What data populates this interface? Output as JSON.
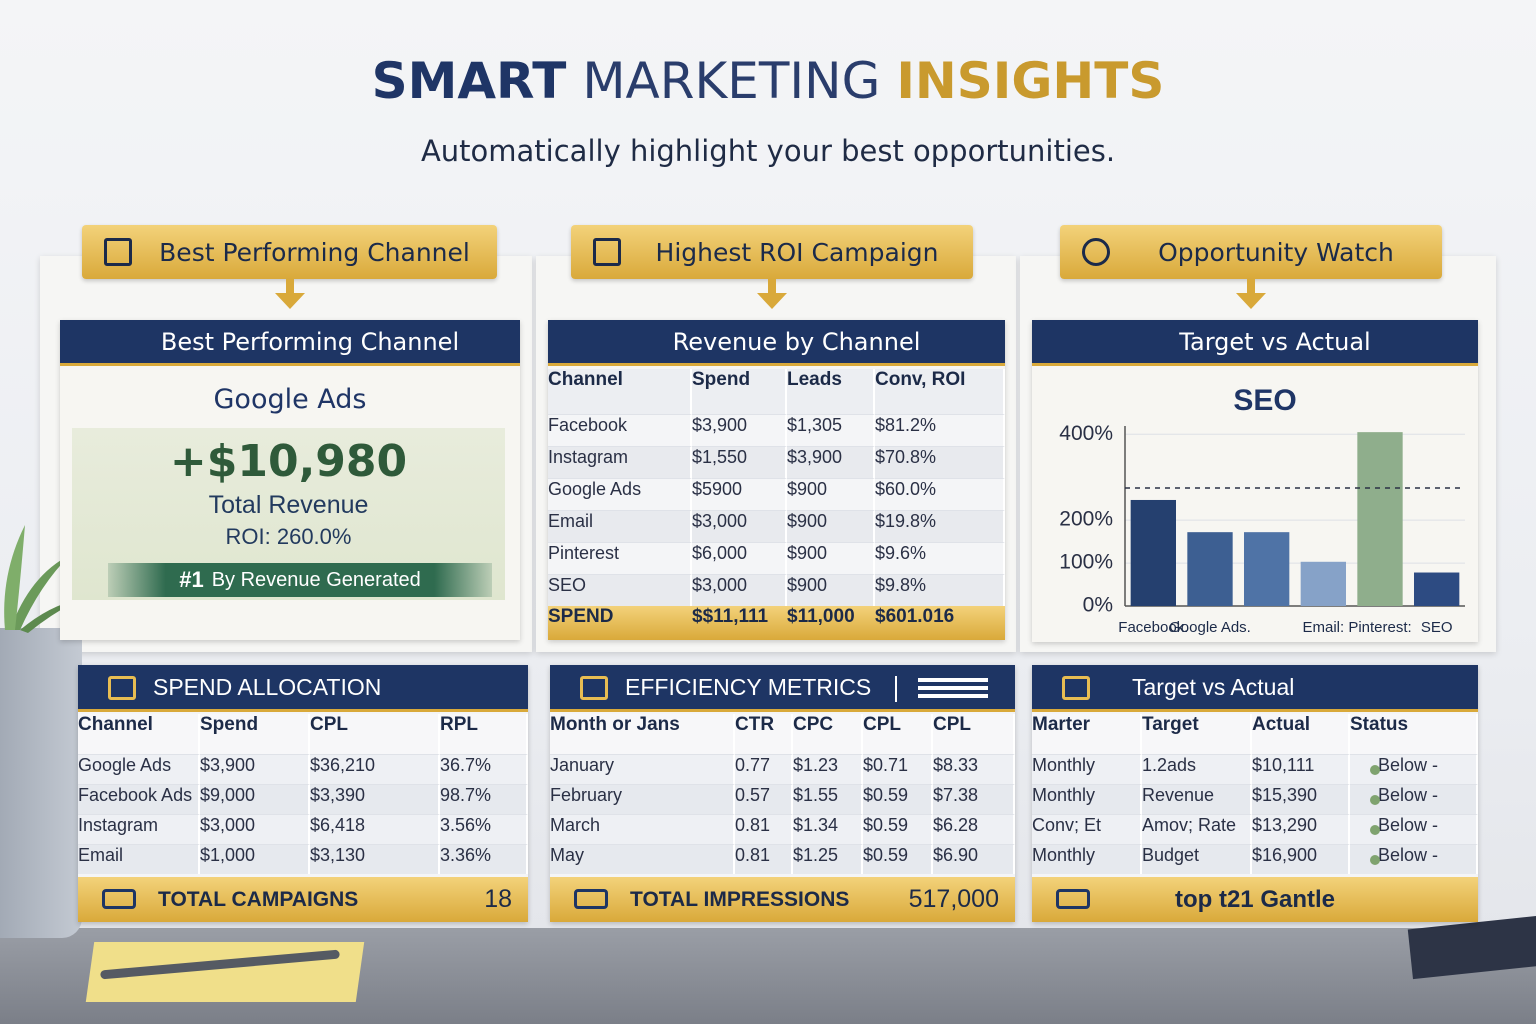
{
  "header": {
    "title": [
      "SMART",
      "MARKETING",
      "INSIGHTS"
    ],
    "subtitle": "Automatically highlight your best opportunities."
  },
  "top_cards": [
    {
      "tab": "Best Performing Channel",
      "title": "Best Performing Channel",
      "channel": "Google Ads",
      "amount": "+$10,980",
      "amount_label": "Total Revenue",
      "roi": "ROI: 260.0%",
      "rank": "#1",
      "rank_note": "By Revenue Generated"
    },
    {
      "tab": "Highest ROI Campaign",
      "title": "Revenue by Channel",
      "table": {
        "columns": [
          "Channel",
          "Spend",
          "Leads",
          "Conv, ROI"
        ],
        "rows": [
          [
            "Facebook",
            "$3,900",
            "$1,305",
            "$81.2%"
          ],
          [
            "Instagram",
            "$1,550",
            "$3,900",
            "$70.8%"
          ],
          [
            "Google Ads",
            "$5900",
            "$900",
            "$60.0%"
          ],
          [
            "Email",
            "$3,000",
            "$900",
            "$19.8%"
          ],
          [
            "Pinterest",
            "$6,000",
            "$900",
            "$9.6%"
          ],
          [
            "SEO",
            "$3,000",
            "$900",
            "$9.8%"
          ]
        ],
        "footer": [
          "SPEND",
          "$$11,111",
          "$11,000",
          "$601.016"
        ]
      }
    },
    {
      "tab": "Opportunity Watch",
      "title": "Target vs Actual"
    }
  ],
  "chart_data": {
    "type": "bar",
    "title": "SEO",
    "categories": [
      "Facebook.",
      "Google Ads.",
      null,
      "Email:",
      "Pinterest:",
      "SEO"
    ],
    "values": [
      247,
      172,
      172,
      103,
      405,
      78
    ],
    "colors": [
      "#25406f",
      "#3d5f92",
      "#4f73a6",
      "#86a2c8",
      "#8fae8c",
      "#2d4b82"
    ],
    "target": 275,
    "ylim": [
      0,
      410
    ],
    "yticks": [
      {
        "value": 0,
        "label": "0%"
      },
      {
        "value": 100,
        "label": "100%"
      },
      {
        "value": 200,
        "label": "200%"
      },
      {
        "value": 400,
        "label": "400%"
      }
    ],
    "grid": true
  },
  "bottom_cards": [
    {
      "title": "SPEND ALLOCATION",
      "table": {
        "columns": [
          "Channel",
          "Spend",
          "CPL",
          "RPL"
        ],
        "rows": [
          [
            "Google Ads",
            "$3,900",
            "$36,210",
            "36.7%"
          ],
          [
            "Facebook Ads",
            "$9,000",
            "$3,390",
            "98.7%"
          ],
          [
            "Instagram",
            "$3,000",
            "$6,418",
            "3.56%"
          ],
          [
            "Email",
            "$1,000",
            "$3,130",
            "3.36%"
          ]
        ]
      },
      "footer": [
        "TOTAL CAMPAIGNS",
        "18"
      ]
    },
    {
      "title": "EFFICIENCY METRICS",
      "table": {
        "columns": [
          "Month or Jans",
          "CTR",
          "CPC",
          "CPL",
          "CPL"
        ],
        "rows": [
          [
            "January",
            "0.77",
            "$1.23",
            "$0.71",
            "$8.33"
          ],
          [
            "February",
            "0.57",
            "$1.55",
            "$0.59",
            "$7.38"
          ],
          [
            "March",
            "0.81",
            "$1.34",
            "$0.59",
            "$6.28"
          ],
          [
            "May",
            "0.81",
            "$1.25",
            "$0.59",
            "$6.90"
          ]
        ]
      },
      "footer": [
        "TOTAL IMPRESSIONS",
        "517,000"
      ]
    },
    {
      "title": "Target vs Actual",
      "table": {
        "columns": [
          "Marter",
          "Target",
          "Actual",
          "Status"
        ],
        "rows": [
          [
            "Monthly",
            "1.2ads",
            "$10,111",
            "Below -"
          ],
          [
            "Monthly",
            "Revenue",
            "$15,390",
            "Below -"
          ],
          [
            "Conv; Et",
            "Amov; Rate",
            "$13,290",
            "Below -"
          ],
          [
            "Monthly",
            "Budget",
            "$16,900",
            "Below -"
          ]
        ]
      },
      "footer": [
        "top t21 Gantle"
      ]
    }
  ]
}
